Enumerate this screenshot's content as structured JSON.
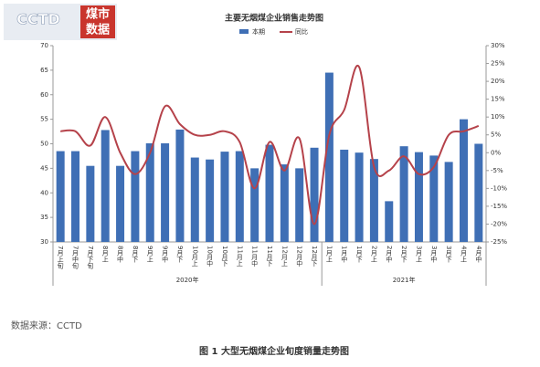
{
  "logo": {
    "name": "CCTD",
    "tag": [
      "煤市",
      "数据"
    ]
  },
  "chart_data": {
    "type": "bar",
    "title": "主要无烟煤企业销售走势图",
    "categories": [
      "7月上旬",
      "7月中旬",
      "7月下旬",
      "8月上",
      "8月中",
      "8月下",
      "9月上",
      "9月中",
      "9月下",
      "10月上",
      "10月中",
      "10月下",
      "11月上",
      "11月中",
      "11月下",
      "12月上",
      "12月中",
      "12月下",
      "1月上",
      "1月中",
      "1月下",
      "2月上",
      "2月中",
      "2月下",
      "3月上",
      "3月中",
      "3月下",
      "4月上",
      "4月中"
    ],
    "groups": [
      {
        "label": "2020年",
        "count": 18
      },
      {
        "label": "2021年",
        "count": 11
      }
    ],
    "series": [
      {
        "name": "本期",
        "color": "#3f6fb5",
        "values": [
          48.5,
          48.5,
          45.5,
          52.8,
          45.5,
          48.5,
          50.1,
          50.1,
          52.9,
          47.2,
          46.8,
          48.4,
          48.5,
          45.0,
          49.8,
          45.8,
          45.0,
          49.2,
          64.5,
          48.8,
          48.2,
          46.9,
          38.3,
          49.5,
          48.3,
          47.6,
          46.3,
          55.0,
          50.0
        ]
      },
      {
        "name": "同比",
        "color": "#b5424a",
        "axis": "y2",
        "values": [
          6,
          6,
          2,
          10,
          0,
          -6,
          0,
          13,
          8,
          5,
          5,
          6,
          3,
          -10,
          3,
          -5,
          4,
          -20,
          5,
          12,
          24,
          -4,
          -5,
          -1,
          -6,
          -4,
          5,
          6,
          7.5
        ]
      }
    ],
    "ylim": [
      30,
      70
    ],
    "yticks": [
      30,
      35,
      40,
      45,
      50,
      55,
      60,
      65,
      70
    ],
    "y2lim": [
      -25,
      30
    ],
    "y2ticks": [
      {
        "value": -25,
        "label": "-25%"
      },
      {
        "value": -20,
        "label": "-20%"
      },
      {
        "value": -15,
        "label": "-15%"
      },
      {
        "value": -10,
        "label": "-10%"
      },
      {
        "value": -5,
        "label": "-5%"
      },
      {
        "value": 0,
        "label": "0%"
      },
      {
        "value": 5,
        "label": "5%"
      },
      {
        "value": 10,
        "label": "10%"
      },
      {
        "value": 15,
        "label": "15%"
      },
      {
        "value": 20,
        "label": "20%"
      },
      {
        "value": 25,
        "label": "25%"
      },
      {
        "value": 30,
        "label": "30%"
      }
    ]
  },
  "source": "数据来源：CCTD",
  "caption": "图 1 大型无烟煤企业旬度销量走势图"
}
